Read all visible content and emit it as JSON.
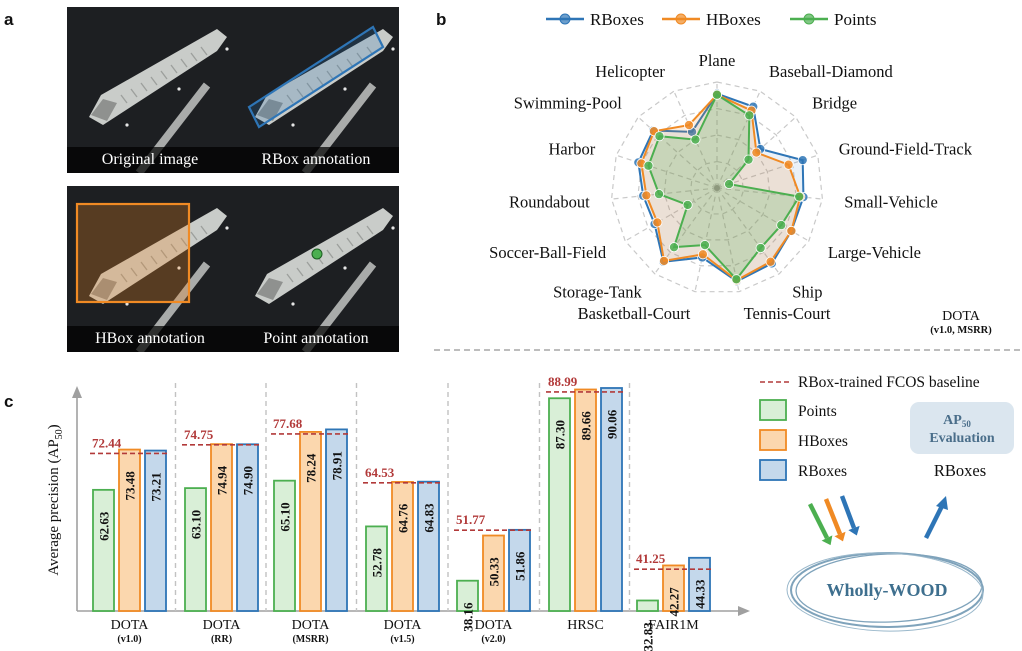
{
  "panels": {
    "a": "a",
    "b": "b",
    "c": "c"
  },
  "thumbnails": [
    {
      "caption": "Original image",
      "overlay": "none"
    },
    {
      "caption": "RBox annotation",
      "overlay": "rbox"
    },
    {
      "caption": "HBox annotation",
      "overlay": "hbox"
    },
    {
      "caption": "Point annotation",
      "overlay": "point"
    }
  ],
  "colors": {
    "rbox": "#2e75b6",
    "hbox": "#f08a24",
    "points": "#4caf50",
    "baseline": "#b23a3a",
    "eval_box": "#dbe6ef",
    "eval_text": "#4a6e8a",
    "wood_text": "#3e6f8e"
  },
  "chart_data": [
    {
      "type": "radar",
      "legend": [
        "RBoxes",
        "HBoxes",
        "Points"
      ],
      "legend_placement": "top",
      "categories": [
        "Plane",
        "Baseball-Diamond",
        "Bridge",
        "Ground-Field-Track",
        "Small-Vehicle",
        "Large-Vehicle",
        "Ship",
        "Tennis-Court",
        "Basketball-Court",
        "Storage-Tank",
        "Soccer-Ball-Field",
        "Roundabout",
        "Harbor",
        "Swimming-Pool",
        "Helicopter"
      ],
      "series": [
        {
          "name": "RBoxes",
          "values": [
            0.89,
            0.84,
            0.55,
            0.85,
            0.82,
            0.81,
            0.88,
            0.9,
            0.67,
            0.86,
            0.68,
            0.7,
            0.78,
            0.81,
            0.58
          ]
        },
        {
          "name": "HBoxes",
          "values": [
            0.88,
            0.8,
            0.5,
            0.71,
            0.79,
            0.81,
            0.86,
            0.89,
            0.64,
            0.85,
            0.65,
            0.67,
            0.75,
            0.8,
            0.65
          ]
        },
        {
          "name": "Points",
          "values": [
            0.88,
            0.75,
            0.4,
            0.12,
            0.78,
            0.7,
            0.7,
            0.88,
            0.55,
            0.69,
            0.32,
            0.55,
            0.68,
            0.73,
            0.5
          ]
        }
      ],
      "grid": true,
      "rlim": [
        0,
        1
      ],
      "annotation": [
        "DOTA",
        "(v1.0, MSRR)"
      ]
    },
    {
      "type": "bar",
      "ylabel": "Average precision (AP",
      "ylabel_sub": "50",
      "ylabel_close": ")",
      "categories": [
        {
          "name": "DOTA",
          "sub": "(v1.0)"
        },
        {
          "name": "DOTA",
          "sub": "(RR)"
        },
        {
          "name": "DOTA",
          "sub": "(MSRR)"
        },
        {
          "name": "DOTA",
          "sub": "(v1.5)"
        },
        {
          "name": "DOTA",
          "sub": "(v2.0)"
        },
        {
          "name": "HRSC",
          "sub": ""
        },
        {
          "name": "FAIR1M",
          "sub": ""
        }
      ],
      "series": [
        {
          "name": "Points",
          "values": [
            62.63,
            63.1,
            65.1,
            52.78,
            38.16,
            87.3,
            32.83
          ]
        },
        {
          "name": "HBoxes",
          "values": [
            73.48,
            74.94,
            78.24,
            64.76,
            50.33,
            89.66,
            42.27
          ]
        },
        {
          "name": "RBoxes",
          "values": [
            73.21,
            74.9,
            78.91,
            64.83,
            51.86,
            90.06,
            44.33
          ]
        }
      ],
      "baseline": {
        "name": "RBox-trained FCOS baseline",
        "values": [
          72.44,
          74.75,
          77.68,
          64.53,
          51.77,
          88.99,
          41.25
        ]
      },
      "legend": [
        "RBox-trained FCOS baseline",
        "Points",
        "HBoxes",
        "RBoxes"
      ],
      "legend_placement": "right",
      "grid": false
    }
  ],
  "side": {
    "eval_title": "AP",
    "eval_sub": "50",
    "eval_word": "Evaluation",
    "eval_output": "RBoxes",
    "model_name": "Wholly-WOOD"
  }
}
